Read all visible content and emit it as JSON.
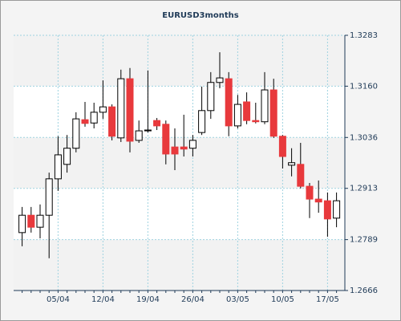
{
  "chart_data": {
    "type": "candlestick",
    "title": "EURUSD3months",
    "categories": [
      null,
      null,
      null,
      null,
      "05/04",
      null,
      null,
      null,
      null,
      "12/04",
      null,
      null,
      null,
      null,
      "19/04",
      null,
      null,
      null,
      null,
      "26/04",
      null,
      null,
      null,
      null,
      "03/05",
      null,
      null,
      null,
      null,
      "10/05",
      null,
      null,
      null,
      null,
      "17/05",
      null
    ],
    "open": [
      1.2806,
      1.2848,
      1.2819,
      1.2848,
      1.2936,
      1.2971,
      1.301,
      1.3079,
      1.3071,
      1.3097,
      1.311,
      1.3035,
      1.3178,
      1.3029,
      1.3052,
      1.3077,
      1.3068,
      1.3013,
      1.3013,
      1.301,
      1.3048,
      1.3101,
      1.3169,
      1.3178,
      1.3064,
      1.3122,
      1.3077,
      1.3074,
      1.3151,
      1.3039,
      1.2969,
      1.2971,
      1.2918,
      1.2887,
      1.2883,
      1.2841
    ],
    "high": [
      1.2868,
      1.2868,
      1.2874,
      1.2951,
      1.3039,
      1.3042,
      1.3097,
      1.3122,
      1.312,
      1.3174,
      1.3116,
      1.32,
      1.3204,
      1.3077,
      1.3198,
      1.3083,
      1.3077,
      1.3058,
      1.3091,
      1.3042,
      1.3159,
      1.3194,
      1.3242,
      1.3194,
      1.3139,
      1.3145,
      1.312,
      1.3194,
      1.3178,
      1.3042,
      1.301,
      1.3023,
      1.2926,
      1.2932,
      1.2903,
      1.2903
    ],
    "low": [
      1.2773,
      1.2806,
      1.2792,
      1.2744,
      1.2907,
      1.2951,
      1.3,
      1.3062,
      1.3058,
      1.3081,
      1.3029,
      1.3025,
      1.3,
      1.3023,
      1.3048,
      1.3054,
      1.2971,
      1.2957,
      1.299,
      1.299,
      1.3042,
      1.3081,
      1.3155,
      1.3039,
      1.3058,
      1.3068,
      1.307,
      1.3068,
      1.3035,
      1.2961,
      1.2942,
      1.2913,
      1.2841,
      1.2854,
      1.2796,
      1.2819
    ],
    "close": [
      1.2848,
      1.2819,
      1.2848,
      1.2936,
      1.2994,
      1.301,
      1.3081,
      1.307,
      1.3097,
      1.311,
      1.3039,
      1.3178,
      1.3027,
      1.3052,
      1.3054,
      1.3064,
      1.2996,
      1.2996,
      1.3008,
      1.3029,
      1.3101,
      1.3169,
      1.318,
      1.3064,
      1.3116,
      1.3077,
      1.3074,
      1.3151,
      1.3039,
      1.299,
      1.2975,
      1.2918,
      1.2887,
      1.288,
      1.2839,
      1.2883
    ],
    "up_color": "#ffffff",
    "down_color": "#e8393c",
    "ylim": [
      1.2666,
      1.3283
    ],
    "yticks": [
      1.2666,
      1.2789,
      1.2913,
      1.3036,
      {
        "value": 1.316,
        "label": "1.3160"
      },
      1.3283
    ],
    "grid": true,
    "y_axis_side": "right"
  }
}
